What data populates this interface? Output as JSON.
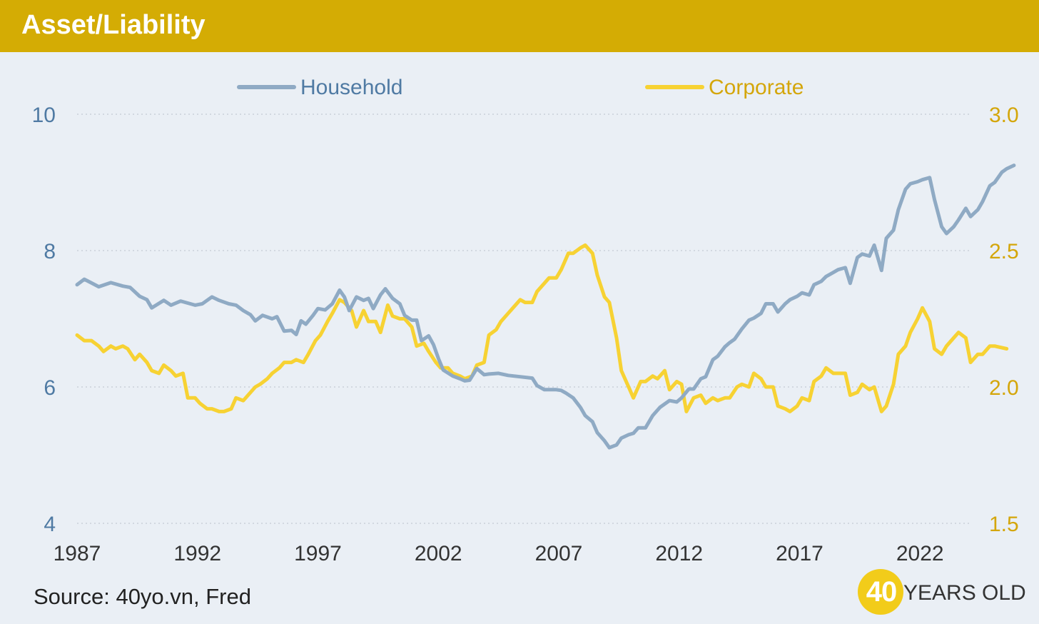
{
  "header": {
    "title": "Asset/Liability"
  },
  "footer": {
    "source": "Source: 40yo.vn, Fred"
  },
  "logo": {
    "number": "40",
    "text": "YEARS OLD"
  },
  "colors": {
    "header_bg": "#d4ac04",
    "household": "#8faac4",
    "corporate": "#f7d233",
    "left_axis_text": "#4f7aa3",
    "right_axis_text": "#d4a60a",
    "grid": "#c9d1da"
  },
  "chart_data": {
    "type": "line",
    "title": "",
    "xlabel": "",
    "x_ticks": [
      "1987",
      "1992",
      "1997",
      "2002",
      "2007",
      "2012",
      "2017",
      "2022"
    ],
    "x_range": [
      1987,
      2024.5
    ],
    "y_left": {
      "range": [
        4,
        10
      ],
      "ticks": [
        "4",
        "6",
        "8",
        "10"
      ]
    },
    "y_right": {
      "range": [
        1.5,
        3.0
      ],
      "ticks": [
        "1.5",
        "2.0",
        "2.5",
        "3.0"
      ]
    },
    "grid": "horizontal dotted",
    "legend": "top-center",
    "series": [
      {
        "name": "Household",
        "axis": "left",
        "points": [
          [
            1987.0,
            7.5
          ],
          [
            1987.3,
            7.58
          ],
          [
            1987.9,
            7.47
          ],
          [
            1988.4,
            7.53
          ],
          [
            1988.9,
            7.48
          ],
          [
            1989.2,
            7.46
          ],
          [
            1989.6,
            7.33
          ],
          [
            1989.9,
            7.28
          ],
          [
            1990.1,
            7.16
          ],
          [
            1990.6,
            7.27
          ],
          [
            1990.9,
            7.2
          ],
          [
            1991.3,
            7.26
          ],
          [
            1991.9,
            7.2
          ],
          [
            1992.2,
            7.22
          ],
          [
            1992.6,
            7.32
          ],
          [
            1992.9,
            7.27
          ],
          [
            1993.3,
            7.22
          ],
          [
            1993.6,
            7.2
          ],
          [
            1993.9,
            7.12
          ],
          [
            1994.2,
            7.06
          ],
          [
            1994.4,
            6.97
          ],
          [
            1994.7,
            7.05
          ],
          [
            1995.1,
            7.0
          ],
          [
            1995.3,
            7.03
          ],
          [
            1995.6,
            6.82
          ],
          [
            1995.9,
            6.83
          ],
          [
            1996.1,
            6.77
          ],
          [
            1996.3,
            6.97
          ],
          [
            1996.5,
            6.92
          ],
          [
            1996.8,
            7.05
          ],
          [
            1997.0,
            7.15
          ],
          [
            1997.3,
            7.13
          ],
          [
            1997.6,
            7.22
          ],
          [
            1997.9,
            7.42
          ],
          [
            1998.1,
            7.32
          ],
          [
            1998.3,
            7.12
          ],
          [
            1998.6,
            7.32
          ],
          [
            1998.9,
            7.27
          ],
          [
            1999.1,
            7.3
          ],
          [
            1999.3,
            7.15
          ],
          [
            1999.6,
            7.35
          ],
          [
            1999.8,
            7.44
          ],
          [
            2000.1,
            7.3
          ],
          [
            2000.4,
            7.22
          ],
          [
            2000.6,
            7.05
          ],
          [
            2000.9,
            6.98
          ],
          [
            2001.1,
            6.98
          ],
          [
            2001.3,
            6.68
          ],
          [
            2001.6,
            6.75
          ],
          [
            2001.8,
            6.62
          ],
          [
            2002.0,
            6.42
          ],
          [
            2002.2,
            6.25
          ],
          [
            2002.6,
            6.16
          ],
          [
            2002.9,
            6.12
          ],
          [
            2003.1,
            6.09
          ],
          [
            2003.3,
            6.1
          ],
          [
            2003.6,
            6.27
          ],
          [
            2003.9,
            6.18
          ],
          [
            2004.1,
            6.19
          ],
          [
            2004.5,
            6.2
          ],
          [
            2004.9,
            6.17
          ],
          [
            2005.4,
            6.15
          ],
          [
            2005.9,
            6.13
          ],
          [
            2006.1,
            6.02
          ],
          [
            2006.4,
            5.96
          ],
          [
            2006.9,
            5.96
          ],
          [
            2007.1,
            5.95
          ],
          [
            2007.3,
            5.91
          ],
          [
            2007.6,
            5.84
          ],
          [
            2007.9,
            5.7
          ],
          [
            2008.1,
            5.58
          ],
          [
            2008.4,
            5.49
          ],
          [
            2008.6,
            5.33
          ],
          [
            2008.9,
            5.21
          ],
          [
            2009.1,
            5.11
          ],
          [
            2009.4,
            5.15
          ],
          [
            2009.6,
            5.25
          ],
          [
            2009.9,
            5.3
          ],
          [
            2010.1,
            5.32
          ],
          [
            2010.3,
            5.4
          ],
          [
            2010.6,
            5.4
          ],
          [
            2010.9,
            5.58
          ],
          [
            2011.2,
            5.7
          ],
          [
            2011.6,
            5.8
          ],
          [
            2011.9,
            5.78
          ],
          [
            2012.1,
            5.84
          ],
          [
            2012.4,
            5.97
          ],
          [
            2012.6,
            5.97
          ],
          [
            2012.9,
            6.12
          ],
          [
            2013.1,
            6.15
          ],
          [
            2013.4,
            6.4
          ],
          [
            2013.6,
            6.45
          ],
          [
            2013.9,
            6.59
          ],
          [
            2014.1,
            6.65
          ],
          [
            2014.3,
            6.7
          ],
          [
            2014.6,
            6.85
          ],
          [
            2014.9,
            6.98
          ],
          [
            2015.1,
            7.01
          ],
          [
            2015.4,
            7.08
          ],
          [
            2015.6,
            7.22
          ],
          [
            2015.9,
            7.22
          ],
          [
            2016.1,
            7.1
          ],
          [
            2016.4,
            7.22
          ],
          [
            2016.6,
            7.28
          ],
          [
            2016.9,
            7.33
          ],
          [
            2017.1,
            7.38
          ],
          [
            2017.4,
            7.35
          ],
          [
            2017.6,
            7.5
          ],
          [
            2017.9,
            7.55
          ],
          [
            2018.1,
            7.62
          ],
          [
            2018.4,
            7.68
          ],
          [
            2018.6,
            7.72
          ],
          [
            2018.9,
            7.75
          ],
          [
            2019.1,
            7.52
          ],
          [
            2019.4,
            7.9
          ],
          [
            2019.6,
            7.95
          ],
          [
            2019.9,
            7.92
          ],
          [
            2020.1,
            8.08
          ],
          [
            2020.4,
            7.71
          ],
          [
            2020.6,
            8.18
          ],
          [
            2020.9,
            8.3
          ],
          [
            2021.1,
            8.6
          ],
          [
            2021.4,
            8.9
          ],
          [
            2021.6,
            8.98
          ],
          [
            2021.9,
            9.01
          ],
          [
            2022.1,
            9.04
          ],
          [
            2022.4,
            9.07
          ],
          [
            2022.6,
            8.75
          ],
          [
            2022.9,
            8.35
          ],
          [
            2023.1,
            8.25
          ],
          [
            2023.4,
            8.35
          ],
          [
            2023.6,
            8.45
          ],
          [
            2023.9,
            8.62
          ],
          [
            2024.1,
            8.5
          ],
          [
            2024.4,
            8.6
          ],
          [
            2024.6,
            8.72
          ],
          [
            2024.9,
            8.95
          ],
          [
            2025.1,
            9.0
          ],
          [
            2025.4,
            9.15
          ],
          [
            2025.6,
            9.2
          ],
          [
            2025.9,
            9.25
          ]
        ]
      },
      {
        "name": "Corporate",
        "axis": "right",
        "points": [
          [
            1987.0,
            2.19
          ],
          [
            1987.3,
            2.17
          ],
          [
            1987.6,
            2.17
          ],
          [
            1987.9,
            2.15
          ],
          [
            1988.1,
            2.13
          ],
          [
            1988.4,
            2.15
          ],
          [
            1988.6,
            2.14
          ],
          [
            1988.9,
            2.15
          ],
          [
            1989.1,
            2.14
          ],
          [
            1989.4,
            2.1
          ],
          [
            1989.6,
            2.12
          ],
          [
            1989.9,
            2.09
          ],
          [
            1990.1,
            2.06
          ],
          [
            1990.4,
            2.05
          ],
          [
            1990.6,
            2.08
          ],
          [
            1990.9,
            2.06
          ],
          [
            1991.1,
            2.04
          ],
          [
            1991.4,
            2.05
          ],
          [
            1991.6,
            1.96
          ],
          [
            1991.9,
            1.96
          ],
          [
            1992.1,
            1.94
          ],
          [
            1992.4,
            1.92
          ],
          [
            1992.6,
            1.92
          ],
          [
            1992.9,
            1.91
          ],
          [
            1993.1,
            1.91
          ],
          [
            1993.4,
            1.92
          ],
          [
            1993.6,
            1.96
          ],
          [
            1993.9,
            1.95
          ],
          [
            1994.1,
            1.97
          ],
          [
            1994.4,
            2.0
          ],
          [
            1994.6,
            2.01
          ],
          [
            1994.9,
            2.03
          ],
          [
            1995.1,
            2.05
          ],
          [
            1995.4,
            2.07
          ],
          [
            1995.6,
            2.09
          ],
          [
            1995.9,
            2.09
          ],
          [
            1996.1,
            2.1
          ],
          [
            1996.4,
            2.09
          ],
          [
            1996.6,
            2.12
          ],
          [
            1996.9,
            2.17
          ],
          [
            1997.1,
            2.19
          ],
          [
            1997.4,
            2.24
          ],
          [
            1997.6,
            2.27
          ],
          [
            1997.9,
            2.32
          ],
          [
            1998.1,
            2.31
          ],
          [
            1998.4,
            2.28
          ],
          [
            1998.6,
            2.22
          ],
          [
            1998.9,
            2.28
          ],
          [
            1999.1,
            2.24
          ],
          [
            1999.4,
            2.24
          ],
          [
            1999.6,
            2.2
          ],
          [
            1999.9,
            2.3
          ],
          [
            2000.1,
            2.26
          ],
          [
            2000.4,
            2.25
          ],
          [
            2000.6,
            2.25
          ],
          [
            2000.9,
            2.22
          ],
          [
            2001.1,
            2.15
          ],
          [
            2001.4,
            2.16
          ],
          [
            2001.6,
            2.13
          ],
          [
            2001.9,
            2.09
          ],
          [
            2002.1,
            2.07
          ],
          [
            2002.4,
            2.07
          ],
          [
            2002.6,
            2.05
          ],
          [
            2002.9,
            2.04
          ],
          [
            2003.1,
            2.03
          ],
          [
            2003.4,
            2.04
          ],
          [
            2003.6,
            2.08
          ],
          [
            2003.9,
            2.09
          ],
          [
            2004.1,
            2.19
          ],
          [
            2004.4,
            2.21
          ],
          [
            2004.6,
            2.24
          ],
          [
            2004.9,
            2.27
          ],
          [
            2005.1,
            2.29
          ],
          [
            2005.4,
            2.32
          ],
          [
            2005.6,
            2.31
          ],
          [
            2005.9,
            2.31
          ],
          [
            2006.1,
            2.35
          ],
          [
            2006.4,
            2.38
          ],
          [
            2006.6,
            2.4
          ],
          [
            2006.9,
            2.4
          ],
          [
            2007.1,
            2.43
          ],
          [
            2007.4,
            2.49
          ],
          [
            2007.6,
            2.49
          ],
          [
            2007.9,
            2.51
          ],
          [
            2008.1,
            2.52
          ],
          [
            2008.4,
            2.49
          ],
          [
            2008.6,
            2.41
          ],
          [
            2008.9,
            2.33
          ],
          [
            2009.1,
            2.31
          ],
          [
            2009.4,
            2.18
          ],
          [
            2009.6,
            2.06
          ],
          [
            2009.9,
            2.0
          ],
          [
            2010.1,
            1.96
          ],
          [
            2010.4,
            2.02
          ],
          [
            2010.6,
            2.02
          ],
          [
            2010.9,
            2.04
          ],
          [
            2011.1,
            2.03
          ],
          [
            2011.4,
            2.06
          ],
          [
            2011.6,
            1.99
          ],
          [
            2011.9,
            2.02
          ],
          [
            2012.1,
            2.01
          ],
          [
            2012.3,
            1.91
          ],
          [
            2012.6,
            1.96
          ],
          [
            2012.9,
            1.97
          ],
          [
            2013.1,
            1.94
          ],
          [
            2013.4,
            1.96
          ],
          [
            2013.6,
            1.95
          ],
          [
            2013.9,
            1.96
          ],
          [
            2014.1,
            1.96
          ],
          [
            2014.4,
            2.0
          ],
          [
            2014.6,
            2.01
          ],
          [
            2014.9,
            2.0
          ],
          [
            2015.1,
            2.05
          ],
          [
            2015.4,
            2.03
          ],
          [
            2015.6,
            2.0
          ],
          [
            2015.9,
            2.0
          ],
          [
            2016.1,
            1.93
          ],
          [
            2016.4,
            1.92
          ],
          [
            2016.6,
            1.91
          ],
          [
            2016.9,
            1.93
          ],
          [
            2017.1,
            1.96
          ],
          [
            2017.4,
            1.95
          ],
          [
            2017.6,
            2.02
          ],
          [
            2017.9,
            2.04
          ],
          [
            2018.1,
            2.07
          ],
          [
            2018.4,
            2.05
          ],
          [
            2018.6,
            2.05
          ],
          [
            2018.9,
            2.05
          ],
          [
            2019.1,
            1.97
          ],
          [
            2019.4,
            1.98
          ],
          [
            2019.6,
            2.01
          ],
          [
            2019.9,
            1.99
          ],
          [
            2020.1,
            2.0
          ],
          [
            2020.4,
            1.91
          ],
          [
            2020.6,
            1.93
          ],
          [
            2020.9,
            2.01
          ],
          [
            2021.1,
            2.12
          ],
          [
            2021.4,
            2.15
          ],
          [
            2021.6,
            2.2
          ],
          [
            2021.9,
            2.25
          ],
          [
            2022.1,
            2.29
          ],
          [
            2022.4,
            2.24
          ],
          [
            2022.6,
            2.14
          ],
          [
            2022.9,
            2.12
          ],
          [
            2023.1,
            2.15
          ],
          [
            2023.4,
            2.18
          ],
          [
            2023.6,
            2.2
          ],
          [
            2023.9,
            2.18
          ],
          [
            2024.1,
            2.09
          ],
          [
            2024.4,
            2.12
          ],
          [
            2024.6,
            2.12
          ],
          [
            2024.9,
            2.15
          ],
          [
            2025.1,
            2.15
          ],
          [
            2025.6,
            2.14
          ]
        ]
      }
    ]
  }
}
